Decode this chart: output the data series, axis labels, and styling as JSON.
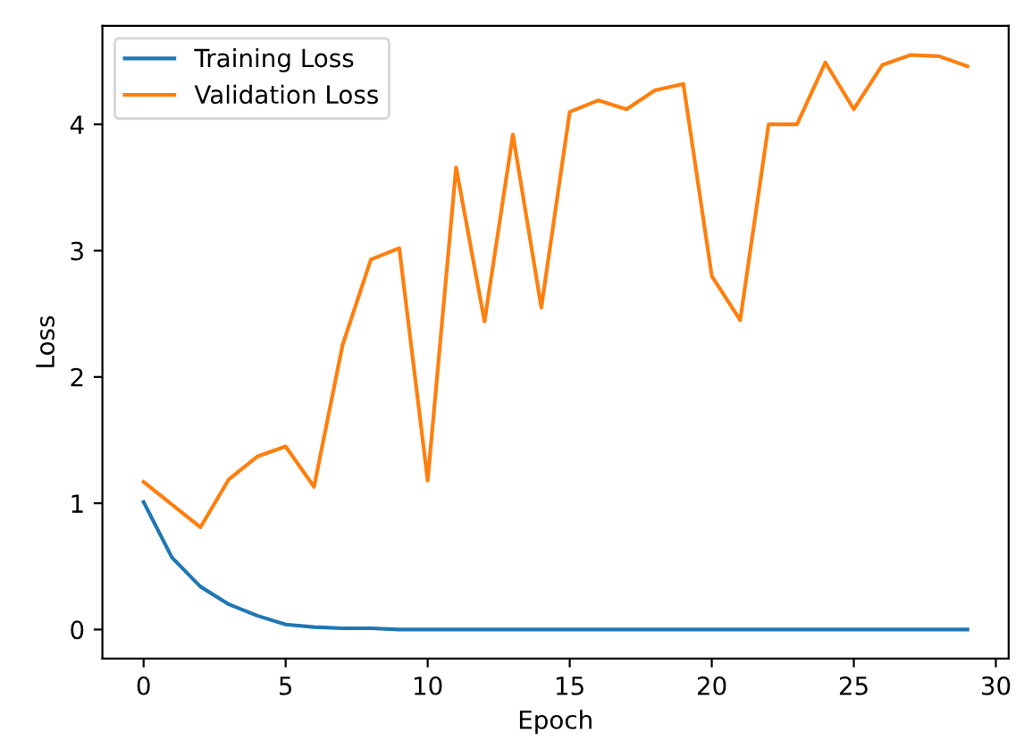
{
  "chart_data": {
    "type": "line",
    "xlabel": "Epoch",
    "ylabel": "Loss",
    "x": [
      0,
      1,
      2,
      3,
      4,
      5,
      6,
      7,
      8,
      9,
      10,
      11,
      12,
      13,
      14,
      15,
      16,
      17,
      18,
      19,
      20,
      21,
      22,
      23,
      24,
      25,
      26,
      27,
      28,
      29
    ],
    "series": [
      {
        "name": "Training Loss",
        "color": "#1f77b4",
        "values": [
          1.01,
          0.57,
          0.34,
          0.2,
          0.11,
          0.04,
          0.02,
          0.01,
          0.01,
          0.0,
          0.0,
          0.0,
          0.0,
          0.0,
          0.0,
          0.0,
          0.0,
          0.0,
          0.0,
          0.0,
          0.0,
          0.0,
          0.0,
          0.0,
          0.0,
          0.0,
          0.0,
          0.0,
          0.0,
          0.0
        ]
      },
      {
        "name": "Validation Loss",
        "color": "#ff7f0e",
        "values": [
          1.17,
          0.99,
          0.81,
          1.19,
          1.37,
          1.45,
          1.13,
          2.25,
          2.93,
          3.02,
          1.18,
          3.66,
          2.44,
          3.92,
          2.55,
          4.1,
          4.19,
          4.12,
          4.27,
          4.32,
          2.8,
          2.45,
          4.0,
          4.0,
          4.49,
          4.12,
          4.47,
          4.55,
          4.54,
          4.46
        ]
      }
    ],
    "xlim": [
      -1.45,
      30.45
    ],
    "ylim": [
      -0.23,
      4.78
    ],
    "xticks": [
      0,
      5,
      10,
      15,
      20,
      25,
      30
    ],
    "yticks": [
      0,
      1,
      2,
      3,
      4
    ],
    "grid": false,
    "legend": "top left",
    "marker": "none",
    "line_style": "solid"
  }
}
